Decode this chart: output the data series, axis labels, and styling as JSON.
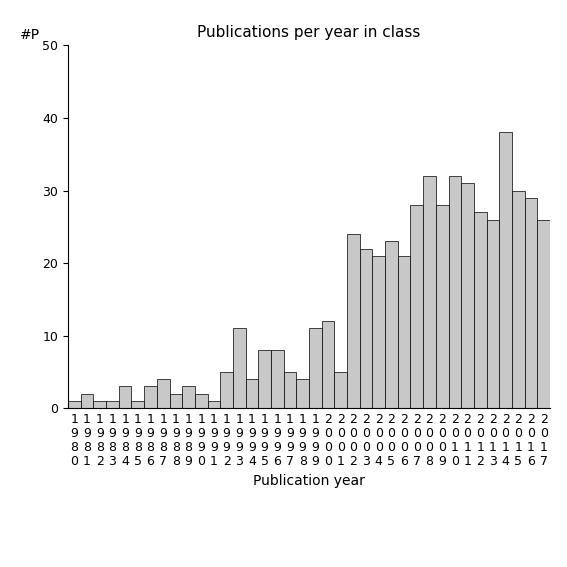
{
  "title": "Publications per year in class",
  "xlabel": "Publication year",
  "ylabel": "#P",
  "years": [
    1980,
    1981,
    1982,
    1983,
    1984,
    1985,
    1986,
    1987,
    1988,
    1989,
    1990,
    1991,
    1992,
    1993,
    1994,
    1995,
    1996,
    1997,
    1998,
    1999,
    2000,
    2001,
    2002,
    2003,
    2004,
    2005,
    2006,
    2007,
    2008,
    2009,
    2010,
    2011,
    2012,
    2013,
    2014,
    2015,
    2016,
    2017
  ],
  "values": [
    1,
    2,
    1,
    1,
    3,
    1,
    3,
    4,
    2,
    3,
    2,
    1,
    5,
    11,
    4,
    8,
    8,
    5,
    4,
    11,
    12,
    5,
    24,
    22,
    21,
    23,
    21,
    28,
    32,
    28,
    32,
    31,
    27,
    26,
    38,
    30,
    29,
    26
  ],
  "bar_color": "#c8c8c8",
  "bar_edge_color": "#000000",
  "background_color": "#ffffff",
  "ylim": [
    0,
    50
  ],
  "yticks": [
    0,
    10,
    20,
    30,
    40,
    50
  ],
  "title_fontsize": 11,
  "xlabel_fontsize": 10,
  "ylabel_fontsize": 10,
  "tick_fontsize": 9
}
